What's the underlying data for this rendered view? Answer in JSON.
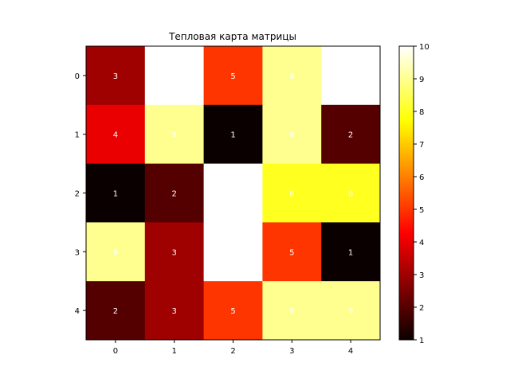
{
  "chart_data": {
    "type": "heatmap",
    "title": "Тепловая карта матрицы",
    "x_categories": [
      "0",
      "1",
      "2",
      "3",
      "4"
    ],
    "y_categories": [
      "0",
      "1",
      "2",
      "3",
      "4"
    ],
    "values": [
      [
        3,
        10,
        5,
        9,
        10
      ],
      [
        4,
        9,
        1,
        9,
        2
      ],
      [
        1,
        2,
        10,
        8,
        8
      ],
      [
        9,
        3,
        10,
        5,
        1
      ],
      [
        2,
        3,
        5,
        9,
        9
      ]
    ],
    "cell_labels": [
      [
        "3",
        "",
        "5",
        "9",
        ""
      ],
      [
        "4",
        "9",
        "1",
        "9",
        "2"
      ],
      [
        "1",
        "2",
        "",
        "8",
        "8"
      ],
      [
        "9",
        "3",
        "",
        "5",
        "1"
      ],
      [
        "2",
        "3",
        "5",
        "9",
        "9"
      ]
    ],
    "colormap": "hot",
    "vmin": 1,
    "vmax": 10,
    "colorbar_ticks": [
      "1",
      "2",
      "3",
      "4",
      "5",
      "6",
      "7",
      "8",
      "9",
      "10"
    ]
  }
}
